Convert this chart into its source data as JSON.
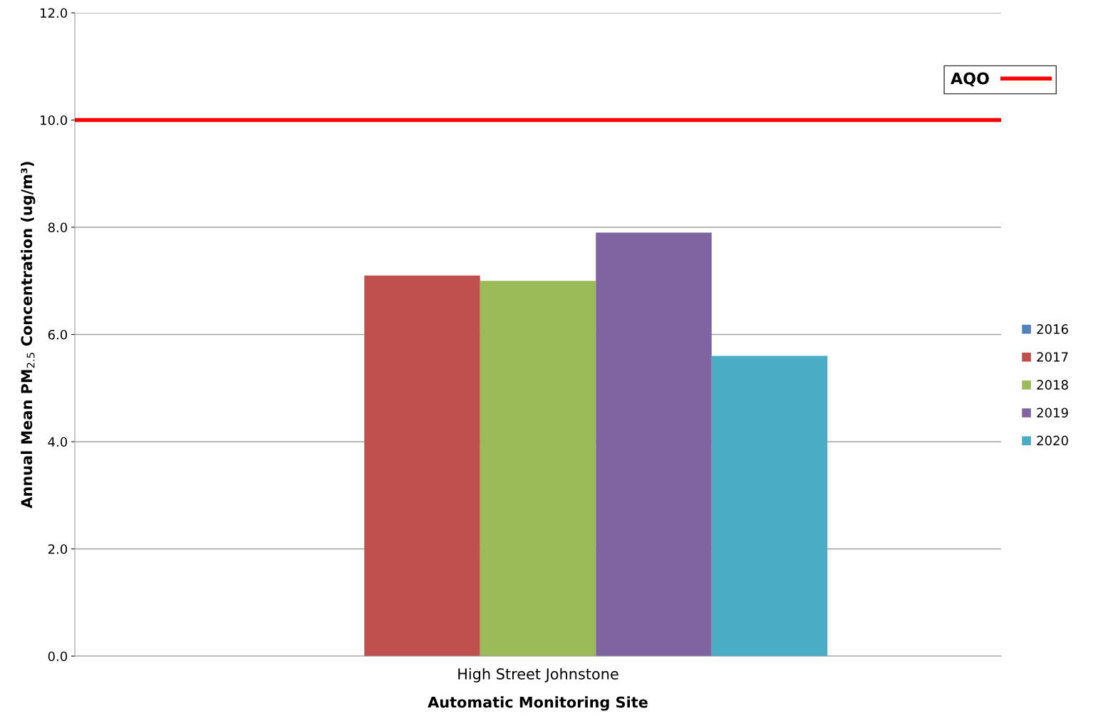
{
  "chart_data": {
    "type": "bar",
    "categories": [
      "High Street Johnstone"
    ],
    "series": [
      {
        "name": "2016",
        "color": "#4f81bd",
        "values": [
          null
        ]
      },
      {
        "name": "2017",
        "color": "#c0504d",
        "values": [
          7.1
        ]
      },
      {
        "name": "2018",
        "color": "#9bbb59",
        "values": [
          7.0
        ]
      },
      {
        "name": "2019",
        "color": "#8064a2",
        "values": [
          7.9
        ]
      },
      {
        "name": "2020",
        "color": "#4bacc6",
        "values": [
          5.6
        ]
      }
    ],
    "xlabel": "Automatic Monitoring Site",
    "ylabel": "Annual Mean PM$_{2.5}$ Concentration (ug/m³)",
    "ylim": [
      0,
      12
    ],
    "yticks": [
      {
        "value": 0,
        "label": "0.0"
      },
      {
        "value": 2,
        "label": "2.0"
      },
      {
        "value": 4,
        "label": "4.0"
      },
      {
        "value": 6,
        "label": "6.0"
      },
      {
        "value": 8,
        "label": "8.0"
      },
      {
        "value": 10,
        "label": "10.0"
      },
      {
        "value": 12,
        "label": "12.0"
      }
    ],
    "ref_lines": [
      {
        "axis": "y",
        "value": 10,
        "label": "AQO",
        "color": "#ff0000"
      }
    ],
    "grid": "y",
    "legend": "right"
  }
}
